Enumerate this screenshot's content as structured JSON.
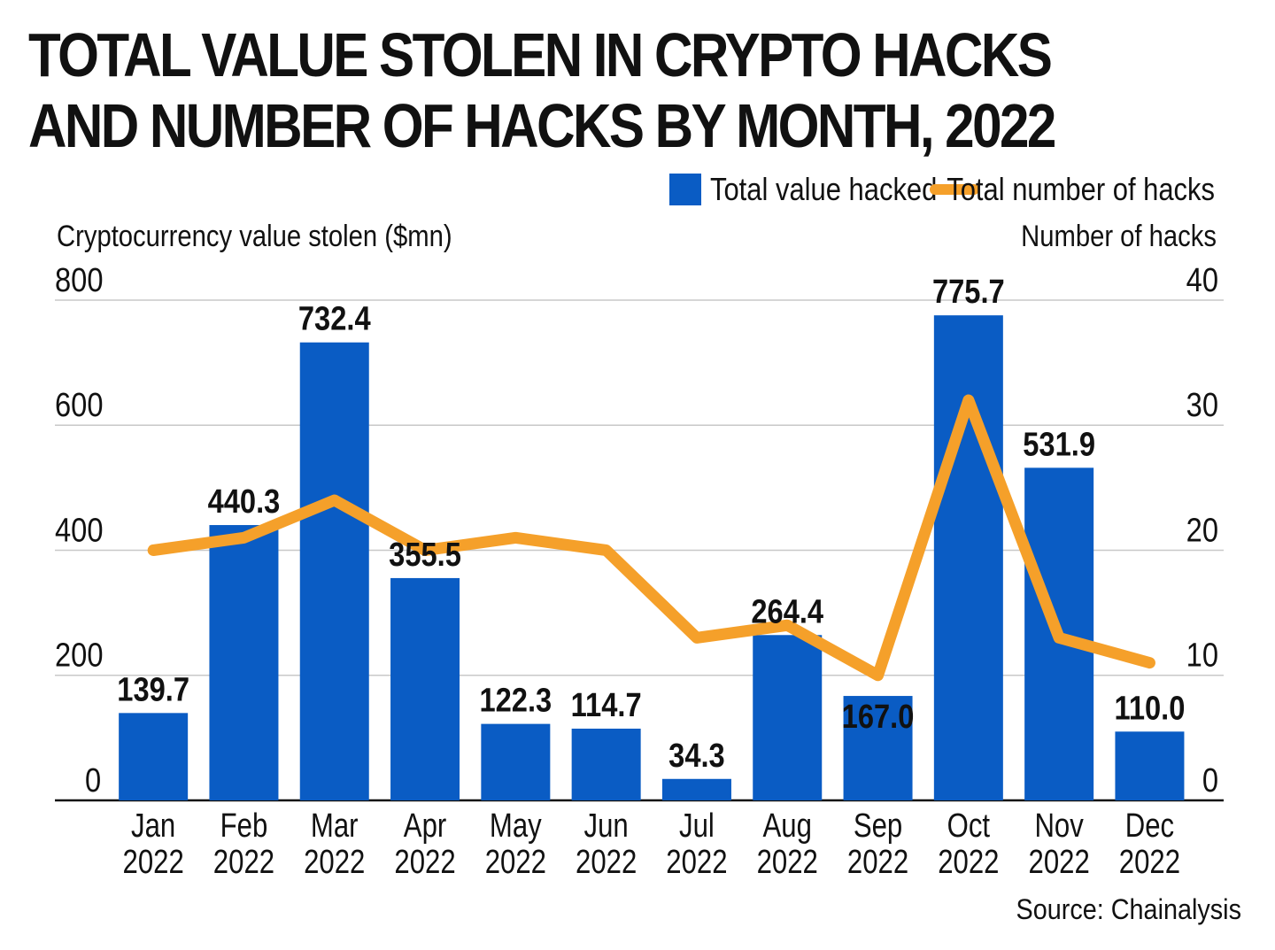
{
  "chart_data": {
    "type": "bar",
    "title": "TOTAL VALUE STOLEN IN CRYPTO HACKS AND NUMBER OF HACKS BY MONTH, 2022",
    "categories": [
      [
        "Jan",
        "2022"
      ],
      [
        "Feb",
        "2022"
      ],
      [
        "Mar",
        "2022"
      ],
      [
        "Apr",
        "2022"
      ],
      [
        "May",
        "2022"
      ],
      [
        "Jun",
        "2022"
      ],
      [
        "Jul",
        "2022"
      ],
      [
        "Aug",
        "2022"
      ],
      [
        "Sep",
        "2022"
      ],
      [
        "Oct",
        "2022"
      ],
      [
        "Nov",
        "2022"
      ],
      [
        "Dec",
        "2022"
      ]
    ],
    "series": [
      {
        "name": "Total value hacked",
        "type": "bar",
        "axis": "left",
        "color": "#0a5cc4",
        "values": [
          139.7,
          440.3,
          732.4,
          355.5,
          122.3,
          114.7,
          34.3,
          264.4,
          167.0,
          775.7,
          531.9,
          110.0
        ],
        "labels": [
          "139.7",
          "440.3",
          "732.4",
          "355.5",
          "122.3",
          "114.7",
          "34.3",
          "264.4",
          "167.0",
          "775.7",
          "531.9",
          "110.0"
        ]
      },
      {
        "name": "Total number of hacks",
        "type": "line",
        "axis": "right",
        "color": "#f5a02a",
        "values": [
          20,
          21,
          24,
          20,
          21,
          20,
          13,
          14,
          10,
          32,
          13,
          11
        ]
      }
    ],
    "ylabel": "Cryptocurrency value stolen ($mn)",
    "y2label": "Number of hacks",
    "ylim": [
      0,
      800
    ],
    "y2lim": [
      0,
      40
    ],
    "yticks": [
      "0",
      "200",
      "400",
      "600",
      "800"
    ],
    "y2ticks": [
      "0",
      "10",
      "20",
      "30",
      "40"
    ],
    "grid": true,
    "legend_position": "top-right",
    "source": "Source: Chainalysis"
  }
}
